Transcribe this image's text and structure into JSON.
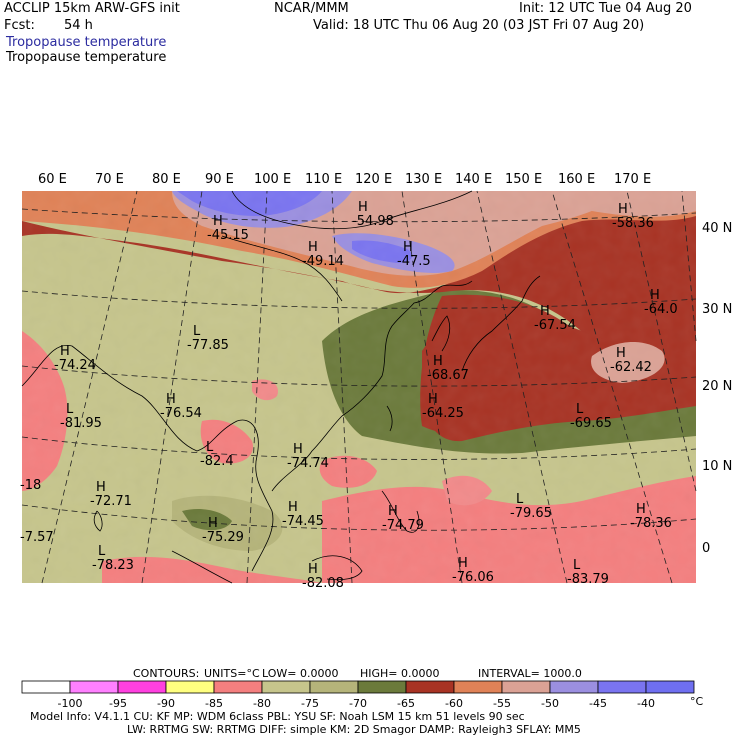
{
  "header": {
    "model": "ACCLIP 15km ARW-GFS init",
    "center": "NCAR/MMM",
    "init": "Init: 12 UTC Tue 04 Aug 20",
    "fcst_label": "Fcst:",
    "fcst_value": "54 h",
    "valid": "Valid: 18 UTC Thu 06 Aug 20 (03 JST Fri 07 Aug 20)",
    "field_title_1": "Tropopause temperature",
    "field_title_2": "Tropopause temperature"
  },
  "map": {
    "lon_labels": [
      "60 E",
      "70 E",
      "80 E",
      "90 E",
      "100 E",
      "110 E",
      "120 E",
      "130 E",
      "140 E",
      "150 E",
      "160 E",
      "170 E"
    ],
    "lat_labels": [
      "40 N",
      "30 N",
      "20 N",
      "10 N",
      "0"
    ],
    "pressure_labels": [
      {
        "type": "H",
        "value": "-45.15"
      },
      {
        "type": "H",
        "value": "-54.98"
      },
      {
        "type": "H",
        "value": "-49.14"
      },
      {
        "type": "H",
        "value": "-47.5"
      },
      {
        "type": "H",
        "value": "-58.36"
      },
      {
        "type": "H",
        "value": "-64.0"
      },
      {
        "type": "H",
        "value": "-67.54"
      },
      {
        "type": "L",
        "value": "-77.85"
      },
      {
        "type": "H",
        "value": "-74.24"
      },
      {
        "type": "H",
        "value": "-68.67"
      },
      {
        "type": "H",
        "value": "-62.42"
      },
      {
        "type": "H",
        "value": "-76.54"
      },
      {
        "type": "H",
        "value": "-64.25"
      },
      {
        "type": "L",
        "value": "-81.95"
      },
      {
        "type": "L",
        "value": "-69.65"
      },
      {
        "type": "L",
        "value": "-82.4"
      },
      {
        "type": "H",
        "value": "-74.74"
      },
      {
        "type": "H",
        "value": "-72.71"
      },
      {
        "type": "H",
        "value": "-74.45"
      },
      {
        "type": "H",
        "value": "-74.79"
      },
      {
        "type": "L",
        "value": "-79.65"
      },
      {
        "type": "H",
        "value": "-78.36"
      },
      {
        "type": "H",
        "value": "-75.29"
      },
      {
        "type": "L",
        "value": "-78.23"
      },
      {
        "type": "H",
        "value": "-82.08"
      },
      {
        "type": "H",
        "value": "-76.06"
      },
      {
        "type": "L",
        "value": "-83.79"
      },
      {
        "type": "",
        "value": "-18"
      },
      {
        "type": "",
        "value": "-7.57"
      }
    ],
    "colors": {
      "band_pink_light": "#f28a8a",
      "band_pink": "#f47f7f",
      "band_khaki_light": "#c6c58c",
      "band_khaki": "#b5b47a",
      "band_olive": "#6b7a3b",
      "band_darkred": "#a83324",
      "band_orange": "#e08257",
      "band_salmon": "#dba295",
      "band_lavender": "#9b8fe0",
      "band_blue": "#7a74f0"
    }
  },
  "contours_line": {
    "label": "CONTOURS:",
    "units": "UNITS=°C",
    "low": "LOW=   0.0000",
    "high": "HIGH=   0.0000",
    "interval": "INTERVAL=    1000.0"
  },
  "colorbar": {
    "colors": [
      "#ffffff",
      "#ff80ff",
      "#ff40e0",
      "#ffff80",
      "#f47f7f",
      "#c6c58c",
      "#b5b47a",
      "#6b7a3b",
      "#a83324",
      "#e08257",
      "#dba295",
      "#9b8fe0",
      "#7a74f0",
      "#6f6ff0"
    ],
    "labels": [
      "-100",
      "-95",
      "-90",
      "-85",
      "-80",
      "-75",
      "-70",
      "-65",
      "-60",
      "-55",
      "-50",
      "-45",
      "-40"
    ],
    "unit": "°C"
  },
  "footer": {
    "line1": "Model Info: V4.1.1     CU: KF       MP: WDM 6class   PBL: YSU        SF: Noah LSM     15 km    51 levels   90 sec",
    "line2": "LW: RRTMG    SW: RRTMG   DIFF: simple KM: 2D Smagor DAMP: Rayleigh3  SFLAY: MM5"
  }
}
